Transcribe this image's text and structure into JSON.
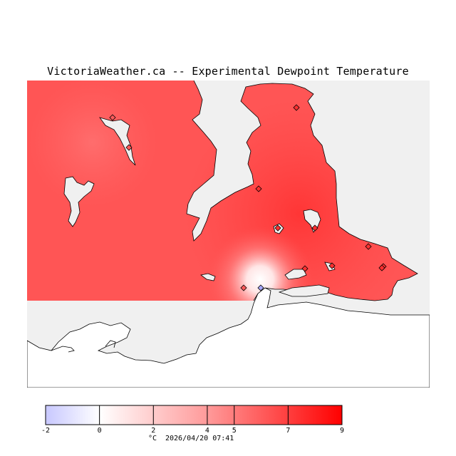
{
  "map": {
    "title": "VictoriaWeather.ca -- Experimental Dewpoint Temperature",
    "legend": {
      "unit": "°C",
      "timestamp": "2026/04/20 07:41",
      "ticks": [
        "-2",
        "0",
        "2",
        "4",
        "5",
        "7",
        "9"
      ],
      "tick_values": [
        -2,
        0,
        2,
        4,
        5,
        7,
        9
      ],
      "colors": {
        "cold": "#c8c8ff",
        "zero": "#ffffff",
        "mid": "#ff8888",
        "warm": "#ff2020",
        "hot": "#ff0000"
      }
    },
    "colors": {
      "land_field": "#ff5555",
      "water": "#f0f0f0",
      "coast": "#000000"
    },
    "stations": [
      {
        "dewpoint": 6.5
      },
      {
        "dewpoint": 6.4
      },
      {
        "dewpoint": 7.3
      },
      {
        "dewpoint": 7.2
      },
      {
        "dewpoint": 7.5
      },
      {
        "dewpoint": 7.4
      },
      {
        "dewpoint": 7.6
      },
      {
        "dewpoint": 7.5
      },
      {
        "dewpoint": 7.7
      },
      {
        "dewpoint": 7.6
      },
      {
        "dewpoint": 7.8
      },
      {
        "dewpoint": 6.8
      },
      {
        "dewpoint": -0.5
      }
    ]
  }
}
